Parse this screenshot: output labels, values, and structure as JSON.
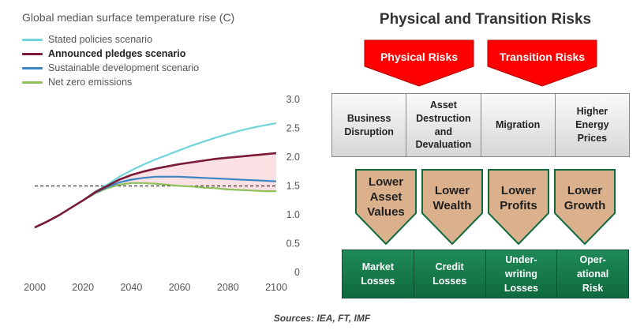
{
  "chart_data": {
    "type": "line",
    "title": "Global median surface temperature rise (C)",
    "x": [
      2000,
      2005,
      2010,
      2015,
      2020,
      2025,
      2030,
      2035,
      2040,
      2045,
      2050,
      2055,
      2060,
      2065,
      2070,
      2075,
      2080,
      2085,
      2090,
      2095,
      2100
    ],
    "series": [
      {
        "name": "Stated policies scenario",
        "color": "#6fd4dd",
        "values": [
          0.78,
          0.88,
          0.99,
          1.12,
          1.25,
          1.4,
          1.52,
          1.66,
          1.77,
          1.87,
          1.96,
          2.04,
          2.12,
          2.2,
          2.27,
          2.34,
          2.4,
          2.46,
          2.51,
          2.55,
          2.59
        ]
      },
      {
        "name": "Announced pledges scenario",
        "color": "#7b1a38",
        "values": [
          0.78,
          0.88,
          0.99,
          1.12,
          1.25,
          1.39,
          1.5,
          1.61,
          1.69,
          1.75,
          1.8,
          1.84,
          1.88,
          1.91,
          1.94,
          1.97,
          1.99,
          2.01,
          2.03,
          2.05,
          2.07
        ]
      },
      {
        "name": "Sustainable development scenario",
        "color": "#3a86c4",
        "values": [
          0.78,
          0.88,
          0.99,
          1.12,
          1.25,
          1.38,
          1.48,
          1.56,
          1.61,
          1.64,
          1.66,
          1.66,
          1.66,
          1.65,
          1.64,
          1.63,
          1.62,
          1.61,
          1.6,
          1.59,
          1.58
        ]
      },
      {
        "name": "Net zero emissions",
        "color": "#8fc05b",
        "values": [
          0.78,
          0.88,
          0.99,
          1.12,
          1.25,
          1.37,
          1.46,
          1.52,
          1.55,
          1.55,
          1.54,
          1.52,
          1.5,
          1.49,
          1.47,
          1.46,
          1.44,
          1.43,
          1.42,
          1.41,
          1.41
        ]
      }
    ],
    "reference_line": 1.5,
    "ylim": [
      0,
      3.0
    ],
    "xlim": [
      2000,
      2100
    ],
    "x_ticks": [
      "2000",
      "2020",
      "2040",
      "2060",
      "2080",
      "2100"
    ],
    "y_ticks": [
      "0",
      "0.5",
      "1.0",
      "1.5",
      "2.0",
      "2.5",
      "3.0"
    ],
    "shaded_band": "between Net zero emissions and Announced pledges scenario",
    "grid": false,
    "legend": "top-left"
  },
  "sources": "Sources: IEA, FT, IMF",
  "risks": {
    "title": "Physical and Transition Risks",
    "top": [
      "Physical Risks",
      "Transition Risks"
    ],
    "middle": [
      [
        "Business",
        "Disruption"
      ],
      [
        "Asset",
        "Destruction",
        "and",
        "Devaluation"
      ],
      [
        "Migration"
      ],
      [
        "Higher",
        "Energy",
        "Prices"
      ]
    ],
    "impacts": [
      [
        "Lower",
        "Asset",
        "Values"
      ],
      [
        "Lower",
        "Wealth"
      ],
      [
        "Lower",
        "Profits"
      ],
      [
        "Lower",
        "Growth"
      ]
    ],
    "losses": [
      [
        "Market",
        "Losses"
      ],
      [
        "Credit",
        "Losses"
      ],
      [
        "Under-",
        "writing",
        "Losses"
      ],
      [
        "Oper-",
        "ational",
        "Risk"
      ]
    ]
  },
  "colors": {
    "red": "#ff0000",
    "tan": "#dbb08c",
    "green": "#187c4c",
    "band": "#fbe0e4"
  }
}
